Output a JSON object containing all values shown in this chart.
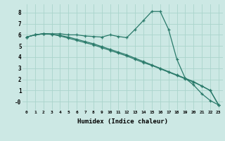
{
  "xlabel": "Humidex (Indice chaleur)",
  "bg_color": "#cce8e4",
  "grid_color": "#aad4cc",
  "line_color": "#2a7a6a",
  "xlim": [
    -0.5,
    23.5
  ],
  "ylim": [
    -0.75,
    8.75
  ],
  "xticks": [
    0,
    1,
    2,
    3,
    4,
    5,
    6,
    7,
    8,
    9,
    10,
    11,
    12,
    13,
    14,
    15,
    16,
    17,
    18,
    19,
    20,
    21,
    22,
    23
  ],
  "yticks": [
    0,
    1,
    2,
    3,
    4,
    5,
    6,
    7,
    8
  ],
  "ytick_labels": [
    "-0",
    "1",
    "2",
    "3",
    "4",
    "5",
    "6",
    "7",
    "8"
  ],
  "line1_x": [
    0,
    1,
    2,
    3,
    4,
    5,
    6,
    7,
    8,
    9,
    10,
    11,
    12,
    13,
    14,
    15,
    16,
    17,
    18,
    19,
    20,
    21,
    22,
    23
  ],
  "line1_y": [
    5.8,
    6.0,
    6.1,
    6.1,
    6.1,
    6.0,
    6.0,
    5.9,
    5.85,
    5.8,
    6.0,
    5.85,
    5.75,
    6.5,
    7.3,
    8.1,
    8.1,
    6.5,
    3.8,
    2.1,
    1.5,
    0.7,
    0.1,
    -0.3
  ],
  "line2_x": [
    0,
    1,
    2,
    3,
    4,
    5,
    6,
    7,
    8,
    9,
    10,
    11,
    12,
    13,
    14,
    15,
    16,
    17,
    18,
    19,
    20,
    21,
    22,
    23
  ],
  "line2_y": [
    5.8,
    6.0,
    6.1,
    6.05,
    5.95,
    5.8,
    5.6,
    5.4,
    5.2,
    4.95,
    4.7,
    4.45,
    4.2,
    3.9,
    3.6,
    3.3,
    3.0,
    2.7,
    2.4,
    2.1,
    1.8,
    1.4,
    1.0,
    -0.3
  ],
  "line3_x": [
    0,
    1,
    2,
    3,
    4,
    5,
    6,
    7,
    8,
    9,
    10,
    11,
    12,
    13,
    14,
    15,
    16,
    17,
    18,
    19,
    20,
    21,
    22,
    23
  ],
  "line3_y": [
    5.8,
    6.0,
    6.1,
    6.05,
    5.9,
    5.7,
    5.5,
    5.3,
    5.1,
    4.85,
    4.6,
    4.35,
    4.1,
    3.8,
    3.5,
    3.25,
    2.95,
    2.65,
    2.35,
    2.05,
    1.75,
    1.4,
    1.0,
    -0.3
  ]
}
